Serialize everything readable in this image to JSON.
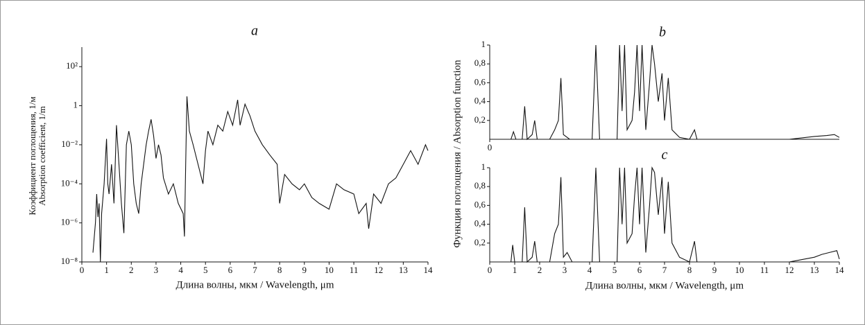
{
  "chart_data": [
    {
      "type": "line",
      "title": "a",
      "xlabel": "Длина волны, мкм / Wavelength, μm",
      "ylabel": [
        "Коэффициент поглощения, 1/м",
        "Absorption coefficient, 1/m"
      ],
      "log_y": true,
      "xlim": [
        0,
        14
      ],
      "ylim": [
        1e-08,
        1000
      ],
      "xticks": [
        0,
        1,
        2,
        3,
        4,
        5,
        6,
        7,
        8,
        9,
        10,
        11,
        12,
        13,
        14
      ],
      "yticks": [
        {
          "value": 1e-08,
          "label": "10⁻⁸"
        },
        {
          "value": 1e-06,
          "label": "10⁻⁶"
        },
        {
          "value": 0.0001,
          "label": "10⁻⁴"
        },
        {
          "value": 0.01,
          "label": "10⁻²"
        },
        1,
        {
          "value": 100,
          "label": "10²"
        }
      ],
      "series": [
        {
          "color": "#111111",
          "x": [
            0.45,
            0.55,
            0.6,
            0.65,
            0.7,
            0.75,
            0.8,
            0.9,
            1.0,
            1.05,
            1.1,
            1.2,
            1.3,
            1.4,
            1.5,
            1.6,
            1.7,
            1.8,
            1.9,
            2.0,
            2.1,
            2.2,
            2.3,
            2.4,
            2.5,
            2.6,
            2.7,
            2.8,
            2.9,
            3.0,
            3.1,
            3.2,
            3.3,
            3.5,
            3.7,
            3.9,
            4.1,
            4.15,
            4.2,
            4.25,
            4.35,
            4.5,
            4.7,
            4.9,
            5.0,
            5.1,
            5.3,
            5.5,
            5.7,
            5.9,
            6.1,
            6.3,
            6.4,
            6.6,
            6.8,
            7.0,
            7.3,
            7.6,
            7.9,
            8.0,
            8.2,
            8.5,
            8.8,
            9.0,
            9.3,
            9.6,
            10.0,
            10.3,
            10.6,
            11.0,
            11.2,
            11.5,
            11.6,
            11.8,
            12.1,
            12.4,
            12.7,
            13.0,
            13.3,
            13.6,
            13.9,
            14.0
          ],
          "values": [
            3e-08,
            1e-06,
            3e-05,
            2e-06,
            1e-05,
            1e-08,
            3e-06,
            0.0001,
            0.02,
            0.0001,
            3e-05,
            0.001,
            1e-05,
            0.1,
            0.001,
            1e-05,
            3e-07,
            0.01,
            0.05,
            0.01,
            0.0001,
            1e-05,
            3e-06,
            0.0001,
            0.001,
            0.01,
            0.05,
            0.2,
            0.03,
            0.002,
            0.01,
            0.003,
            0.0002,
            3e-05,
            0.0001,
            1e-05,
            3e-06,
            2e-07,
            0.001,
            3,
            0.05,
            0.01,
            0.001,
            0.0001,
            0.005,
            0.05,
            0.01,
            0.1,
            0.05,
            0.5,
            0.1,
            2,
            0.1,
            1.2,
            0.3,
            0.05,
            0.01,
            0.003,
            0.001,
            1e-05,
            0.0003,
            0.0001,
            5e-05,
            0.0001,
            2e-05,
            1e-05,
            5e-06,
            0.0001,
            5e-05,
            3e-05,
            3e-06,
            1e-05,
            5e-07,
            3e-05,
            1e-05,
            0.0001,
            0.0002,
            0.001,
            0.005,
            0.001,
            0.01,
            0.005
          ]
        }
      ]
    },
    {
      "type": "line",
      "title": "b",
      "ylabel": "Функция поглощения / Absorption function",
      "xlim": [
        0,
        14
      ],
      "ylim": [
        0,
        1
      ],
      "xticks": [
        0
      ],
      "yticks": [
        {
          "value": 0.2,
          "label": "0,2"
        },
        {
          "value": 0.4,
          "label": "0,4"
        },
        {
          "value": 0.6,
          "label": "0,6"
        },
        {
          "value": 0.8,
          "label": "0,8"
        },
        1
      ],
      "series": [
        {
          "color": "#111111",
          "x": [
            0,
            0.85,
            0.95,
            1.05,
            1.3,
            1.4,
            1.5,
            1.7,
            1.8,
            1.9,
            2.4,
            2.6,
            2.75,
            2.85,
            2.95,
            3.2,
            4.1,
            4.25,
            4.4,
            5.1,
            5.2,
            5.3,
            5.4,
            5.5,
            5.7,
            5.8,
            5.9,
            6.0,
            6.1,
            6.25,
            6.4,
            6.5,
            6.6,
            6.75,
            6.9,
            7.0,
            7.15,
            7.3,
            7.6,
            8.0,
            8.2,
            8.3,
            9.5,
            12,
            13,
            13.5,
            13.8,
            14
          ],
          "values": [
            0,
            0,
            0.08,
            0,
            0,
            0.35,
            0,
            0.05,
            0.2,
            0,
            0,
            0.1,
            0.2,
            0.65,
            0.05,
            0,
            0,
            1,
            0,
            0,
            1,
            0.3,
            1,
            0.1,
            0.2,
            0.5,
            1,
            0.3,
            1,
            0.1,
            0.6,
            1,
            0.8,
            0.4,
            0.7,
            0.2,
            0.65,
            0.1,
            0.02,
            0,
            0.1,
            0,
            0,
            0,
            0.03,
            0.04,
            0.05,
            0.02
          ]
        }
      ]
    },
    {
      "type": "line",
      "title": "c",
      "xlabel": "Длина волны, мкм / Wavelength, μm",
      "xlim": [
        0,
        14
      ],
      "ylim": [
        0,
        1
      ],
      "xticks": [
        0,
        1,
        2,
        3,
        4,
        5,
        6,
        7,
        8,
        9,
        10,
        11,
        12,
        13,
        14
      ],
      "yticks": [
        {
          "value": 0.2,
          "label": "0,2"
        },
        {
          "value": 0.4,
          "label": "0,4"
        },
        {
          "value": 0.6,
          "label": "0,6"
        },
        {
          "value": 0.8,
          "label": "0,8"
        },
        1
      ],
      "series": [
        {
          "color": "#111111",
          "x": [
            0,
            0.85,
            0.92,
            1.0,
            1.3,
            1.4,
            1.5,
            1.7,
            1.8,
            1.9,
            2.4,
            2.6,
            2.75,
            2.85,
            2.95,
            3.1,
            3.3,
            4.1,
            4.25,
            4.4,
            5.1,
            5.2,
            5.3,
            5.4,
            5.5,
            5.7,
            5.8,
            5.9,
            6.0,
            6.1,
            6.25,
            6.4,
            6.5,
            6.6,
            6.75,
            6.9,
            7.0,
            7.15,
            7.3,
            7.6,
            8.0,
            8.2,
            8.3,
            9.5,
            12,
            13,
            13.3,
            13.6,
            13.9,
            14
          ],
          "values": [
            0,
            0,
            0.18,
            0,
            0,
            0.58,
            0,
            0.05,
            0.22,
            0,
            0,
            0.3,
            0.4,
            0.9,
            0.05,
            0.1,
            0,
            0,
            1,
            0,
            0,
            1,
            0.4,
            1,
            0.2,
            0.3,
            0.7,
            1,
            0.4,
            1,
            0.1,
            0.6,
            1,
            0.95,
            0.5,
            0.9,
            0.3,
            0.85,
            0.2,
            0.05,
            0,
            0.22,
            0,
            0,
            0,
            0.05,
            0.08,
            0.1,
            0.12,
            0.03
          ]
        }
      ]
    }
  ]
}
